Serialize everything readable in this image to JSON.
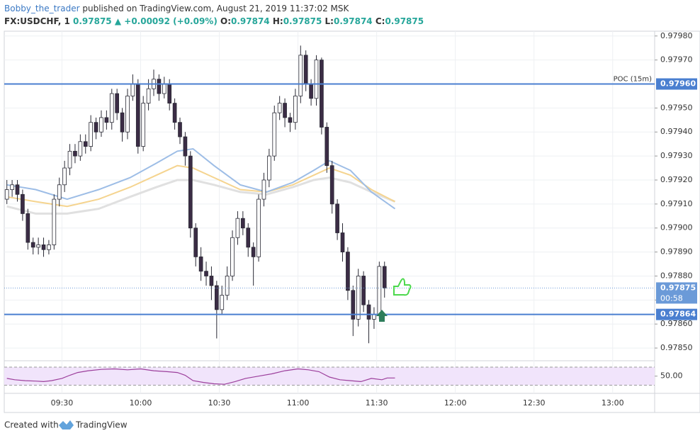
{
  "header": {
    "author": "Bobby_the_trader",
    "published": "published on TradingView.com, August 21, 2019 11:37:02 MSK",
    "symbol": "FX:USDCHF, 1",
    "last": "0.97875",
    "change_arrow": "▲",
    "change": "+0.00092 (+0.09%)",
    "o_label": "O:",
    "o": "0.97874",
    "h_label": "H:",
    "h": "0.97875",
    "l_label": "L:",
    "l": "0.97874",
    "c_label": "C:",
    "c": "0.97875"
  },
  "chart_data": [
    {
      "type": "candlestick",
      "up_color": "#ffffff",
      "down_color": "#3b2c45",
      "wick_color": "#2a2a35",
      "xlim": [
        548,
        796
      ],
      "xticks": [
        {
          "value": 570,
          "label": "09:30"
        },
        {
          "value": 600,
          "label": "10:00"
        },
        {
          "value": 630,
          "label": "10:30"
        },
        {
          "value": 660,
          "label": "11:00"
        },
        {
          "value": 690,
          "label": "11:30"
        },
        {
          "value": 720,
          "label": "12:00"
        },
        {
          "value": 750,
          "label": "12:30"
        },
        {
          "value": 780,
          "label": "13:00"
        }
      ],
      "ylim": [
        0.97845,
        0.97982
      ],
      "yticks": [
        {
          "value": 0.9785,
          "label": "0.97850"
        },
        {
          "value": 0.9786,
          "label": "0.97860"
        },
        {
          "value": 0.9787,
          "label": "0.97870"
        },
        {
          "value": 0.9788,
          "label": "0.97880"
        },
        {
          "value": 0.9789,
          "label": "0.97890"
        },
        {
          "value": 0.979,
          "label": "0.97900"
        },
        {
          "value": 0.9791,
          "label": "0.97910"
        },
        {
          "value": 0.9792,
          "label": "0.97920"
        },
        {
          "value": 0.9793,
          "label": "0.97930"
        },
        {
          "value": 0.9794,
          "label": "0.97940"
        },
        {
          "value": 0.9795,
          "label": "0.97950"
        },
        {
          "value": 0.9797,
          "label": "0.97970"
        },
        {
          "value": 0.9798,
          "label": "0.97980"
        }
      ],
      "grid": true,
      "x": [
        549,
        551,
        553,
        555,
        557,
        559,
        561,
        563,
        565,
        567,
        569,
        571,
        573,
        575,
        577,
        579,
        581,
        583,
        585,
        587,
        589,
        591,
        593,
        595,
        597,
        599,
        601,
        603,
        605,
        607,
        609,
        611,
        613,
        615,
        617,
        619,
        621,
        623,
        625,
        627,
        629,
        631,
        633,
        635,
        637,
        639,
        641,
        643,
        645,
        647,
        649,
        651,
        653,
        655,
        657,
        659,
        661,
        663,
        665,
        667,
        669,
        671,
        673,
        675,
        677,
        679,
        681,
        683,
        685,
        687,
        689,
        691,
        693
      ],
      "open": [
        0.97912,
        0.97916,
        0.97918,
        0.97914,
        0.97906,
        0.97894,
        0.97892,
        0.97893,
        0.97891,
        0.97893,
        0.97912,
        0.97918,
        0.97925,
        0.97932,
        0.9793,
        0.97936,
        0.97934,
        0.97944,
        0.9794,
        0.97946,
        0.97944,
        0.97956,
        0.97948,
        0.9794,
        0.97955,
        0.9796,
        0.97934,
        0.97952,
        0.97958,
        0.97962,
        0.97956,
        0.9796,
        0.97952,
        0.97944,
        0.97938,
        0.9793,
        0.979,
        0.97888,
        0.97882,
        0.9788,
        0.97876,
        0.97866,
        0.97872,
        0.9788,
        0.97896,
        0.97904,
        0.979,
        0.97892,
        0.97888,
        0.97912,
        0.9792,
        0.9793,
        0.97948,
        0.97952,
        0.97946,
        0.97944,
        0.97955,
        0.97972,
        0.9796,
        0.97954,
        0.9797,
        0.97942,
        0.97926,
        0.9791,
        0.97898,
        0.9789,
        0.97874,
        0.97862,
        0.9788,
        0.97868,
        0.97862,
        0.97864,
        0.97884
      ],
      "high": [
        0.9792,
        0.9792,
        0.9792,
        0.97916,
        0.97908,
        0.97896,
        0.97896,
        0.97896,
        0.97895,
        0.97914,
        0.97921,
        0.97928,
        0.97935,
        0.97935,
        0.97939,
        0.97939,
        0.97947,
        0.97946,
        0.97949,
        0.97949,
        0.97958,
        0.97958,
        0.9795,
        0.97958,
        0.97964,
        0.97962,
        0.97955,
        0.97962,
        0.97966,
        0.97964,
        0.97963,
        0.97962,
        0.97954,
        0.97946,
        0.9794,
        0.97932,
        0.97902,
        0.97892,
        0.97886,
        0.97884,
        0.97878,
        0.97876,
        0.97884,
        0.97899,
        0.97907,
        0.97907,
        0.97902,
        0.97894,
        0.97914,
        0.97923,
        0.97933,
        0.97951,
        0.97955,
        0.97954,
        0.97948,
        0.97958,
        0.97976,
        0.97974,
        0.97962,
        0.97972,
        0.97971,
        0.97944,
        0.97928,
        0.97912,
        0.97902,
        0.97892,
        0.97876,
        0.97883,
        0.97882,
        0.9787,
        0.97867,
        0.97886,
        0.97886
      ],
      "low": [
        0.9791,
        0.97913,
        0.97911,
        0.97903,
        0.97891,
        0.97889,
        0.97889,
        0.97888,
        0.97889,
        0.97891,
        0.97909,
        0.97915,
        0.97922,
        0.97927,
        0.97928,
        0.97931,
        0.97932,
        0.97937,
        0.97938,
        0.97941,
        0.97941,
        0.97945,
        0.97936,
        0.97937,
        0.97953,
        0.97931,
        0.97932,
        0.97949,
        0.97955,
        0.97953,
        0.97954,
        0.97949,
        0.97941,
        0.97935,
        0.97926,
        0.97896,
        0.97884,
        0.97878,
        0.97876,
        0.9787,
        0.97854,
        0.97864,
        0.9787,
        0.97878,
        0.97893,
        0.97897,
        0.97888,
        0.97876,
        0.97886,
        0.97909,
        0.97917,
        0.97928,
        0.97945,
        0.97942,
        0.9794,
        0.97941,
        0.97952,
        0.97957,
        0.97951,
        0.97951,
        0.97939,
        0.97923,
        0.97906,
        0.97895,
        0.97886,
        0.9787,
        0.97855,
        0.97859,
        0.97865,
        0.97852,
        0.97858,
        0.97862,
        0.97871
      ],
      "close": [
        0.97916,
        0.97918,
        0.97914,
        0.97906,
        0.97894,
        0.97892,
        0.97893,
        0.97891,
        0.97893,
        0.97912,
        0.97918,
        0.97925,
        0.97932,
        0.9793,
        0.97936,
        0.97934,
        0.97944,
        0.9794,
        0.97946,
        0.97944,
        0.97956,
        0.97948,
        0.9794,
        0.97955,
        0.9796,
        0.97934,
        0.97952,
        0.97958,
        0.97962,
        0.97956,
        0.9796,
        0.97952,
        0.97944,
        0.97938,
        0.9793,
        0.979,
        0.97888,
        0.97882,
        0.9788,
        0.97876,
        0.97866,
        0.97872,
        0.9788,
        0.97896,
        0.97904,
        0.979,
        0.97892,
        0.97888,
        0.97912,
        0.9792,
        0.9793,
        0.97948,
        0.97952,
        0.97946,
        0.97944,
        0.97955,
        0.97972,
        0.9796,
        0.97954,
        0.9797,
        0.97942,
        0.97926,
        0.9791,
        0.97898,
        0.9789,
        0.97874,
        0.97862,
        0.9788,
        0.97868,
        0.97862,
        0.97864,
        0.97884,
        0.97875
      ],
      "lines": [
        {
          "color": "#e0e0e0",
          "width": 3,
          "x": [
            549,
            560,
            572,
            584,
            596,
            606,
            614,
            620,
            628,
            638,
            648,
            658,
            666,
            672,
            680,
            688,
            697
          ],
          "values": [
            0.97909,
            0.97906,
            0.97906,
            0.97908,
            0.97913,
            0.97917,
            0.9792,
            0.9792,
            0.97918,
            0.97915,
            0.97914,
            0.97917,
            0.9792,
            0.97921,
            0.97919,
            0.97915,
            0.97911
          ]
        },
        {
          "color": "#f5d48f",
          "width": 2,
          "x": [
            549,
            560,
            572,
            584,
            596,
            606,
            614,
            620,
            628,
            638,
            648,
            658,
            666,
            672,
            680,
            688,
            697
          ],
          "values": [
            0.97913,
            0.97911,
            0.97909,
            0.97912,
            0.97917,
            0.97922,
            0.97926,
            0.97925,
            0.97921,
            0.97916,
            0.97915,
            0.97918,
            0.97922,
            0.97925,
            0.97922,
            0.97916,
            0.97911
          ]
        },
        {
          "color": "#9dbde6",
          "width": 2,
          "x": [
            549,
            560,
            572,
            584,
            596,
            606,
            614,
            620,
            628,
            638,
            648,
            658,
            666,
            672,
            680,
            688,
            697
          ],
          "values": [
            0.97918,
            0.97916,
            0.97912,
            0.97916,
            0.97921,
            0.97927,
            0.97932,
            0.97933,
            0.97926,
            0.97918,
            0.97915,
            0.97919,
            0.97924,
            0.97928,
            0.97924,
            0.97915,
            0.97908
          ]
        }
      ],
      "hlines": [
        {
          "value": 0.9796,
          "label": "0.97960",
          "name": "POC (15m)",
          "color": "#4a7fd0"
        },
        {
          "value": 0.97864,
          "label": "0.97864",
          "color": "#4a7fd0"
        }
      ],
      "last_price": {
        "value": 0.97875,
        "label": "0.97875",
        "countdown": "00:58",
        "color": "#6b9ad8"
      }
    },
    {
      "type": "line",
      "color": "#9c3f9c",
      "band_color": "#f1e4fb",
      "xlim": [
        548,
        796
      ],
      "ylim": [
        15,
        81
      ],
      "bands": [
        30,
        70
      ],
      "yticks": [
        {
          "value": 50,
          "label": "50.00"
        }
      ],
      "x": [
        549,
        552,
        556,
        560,
        563,
        566,
        570,
        573,
        576,
        580,
        585,
        590,
        595,
        600,
        605,
        610,
        614,
        617,
        620,
        624,
        628,
        632,
        636,
        640,
        645,
        650,
        655,
        660,
        664,
        668,
        672,
        676,
        680,
        684,
        688,
        692,
        694,
        697
      ],
      "values": [
        45,
        42,
        40,
        39,
        38,
        40,
        45,
        52,
        58,
        62,
        65,
        66,
        64,
        66,
        62,
        60,
        58,
        52,
        40,
        36,
        33,
        32,
        38,
        45,
        50,
        55,
        62,
        66,
        64,
        60,
        48,
        42,
        40,
        38,
        45,
        42,
        46,
        46
      ]
    }
  ],
  "footer": {
    "created": "Created with",
    "brand": "TradingView"
  }
}
